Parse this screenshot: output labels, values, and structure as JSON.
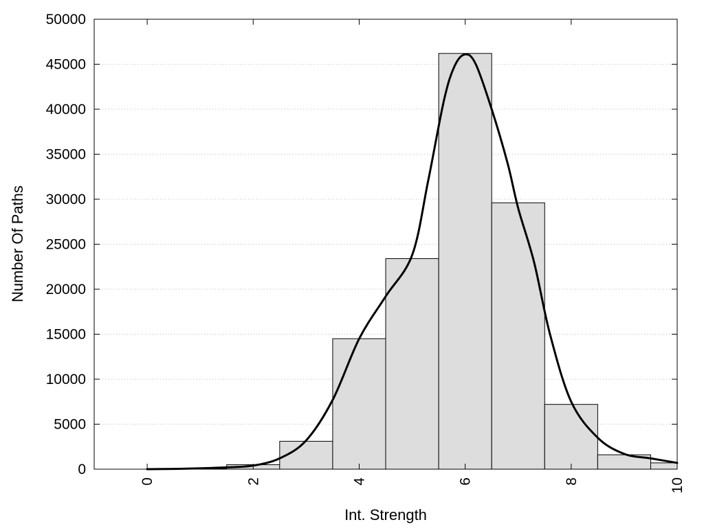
{
  "chart_data": {
    "type": "bar",
    "title": "",
    "xlabel": "Int. Strength",
    "ylabel": "Number Of Paths",
    "xlim": [
      -1,
      10
    ],
    "ylim": [
      0,
      50000
    ],
    "x_ticks": [
      0,
      2,
      4,
      6,
      8,
      10
    ],
    "x_tick_labels": [
      "0",
      "2",
      "4",
      "6",
      "8",
      "10"
    ],
    "y_ticks": [
      0,
      5000,
      10000,
      15000,
      20000,
      25000,
      30000,
      35000,
      40000,
      45000,
      50000
    ],
    "y_tick_labels": [
      "0",
      "5000",
      "10000",
      "15000",
      "20000",
      "25000",
      "30000",
      "35000",
      "40000",
      "45000",
      "50000"
    ],
    "grid": "horizontal-dotted",
    "legend": "none",
    "bin_width": 1,
    "bars": [
      {
        "x": 0,
        "value": 0
      },
      {
        "x": 1,
        "value": 50
      },
      {
        "x": 2,
        "value": 500
      },
      {
        "x": 3,
        "value": 3100
      },
      {
        "x": 4,
        "value": 14500
      },
      {
        "x": 5,
        "value": 23400
      },
      {
        "x": 6,
        "value": 46200
      },
      {
        "x": 7,
        "value": 29600
      },
      {
        "x": 8,
        "value": 7200
      },
      {
        "x": 9,
        "value": 1600
      },
      {
        "x": 10,
        "value": 700
      }
    ],
    "curve": {
      "x": [
        0,
        0.5,
        1,
        1.5,
        2,
        2.5,
        3,
        3.5,
        4,
        4.5,
        5,
        5.3,
        5.6,
        5.8,
        6,
        6.2,
        6.5,
        6.8,
        7,
        7.3,
        7.6,
        8,
        8.5,
        9,
        9.5,
        10
      ],
      "y": [
        0,
        30,
        100,
        200,
        400,
        1200,
        3200,
        7700,
        14500,
        19200,
        23800,
        32000,
        41000,
        44800,
        46100,
        45000,
        40000,
        34000,
        29000,
        23000,
        15000,
        7500,
        3500,
        1700,
        1200,
        700
      ]
    },
    "colors": {
      "bar_fill": "#dddddd",
      "bar_stroke": "#000000",
      "curve": "#000000",
      "grid": "#bbbbbb",
      "frame": "#000000"
    }
  }
}
